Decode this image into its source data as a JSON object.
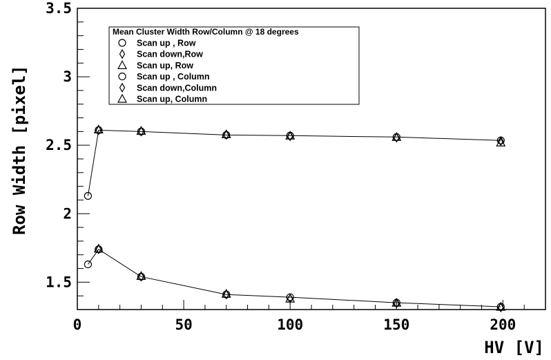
{
  "chart_data": {
    "type": "scatter",
    "xlabel": "HV [V]",
    "ylabel": "Row Width [pixel]",
    "xlim": [
      0,
      220
    ],
    "ylim": [
      1.3,
      3.5
    ],
    "xticks": [
      0,
      50,
      100,
      150,
      200
    ],
    "yticks": [
      1.5,
      2,
      2.5,
      3,
      3.5
    ],
    "xtick_labels": [
      "0",
      "50",
      "100",
      "150",
      "200"
    ],
    "ytick_labels": [
      "1.5",
      "2",
      "2.5",
      "3",
      "3.5"
    ],
    "grid": false,
    "legend": {
      "title": "Mean Cluster Width Row/Column @ 18 degrees",
      "placement": "top-left",
      "entries": [
        {
          "label": "Scan up , Row",
          "marker": "circle"
        },
        {
          "label": "Scan down,Row",
          "marker": "diamond"
        },
        {
          "label": "Scan up, Row",
          "marker": "triangle"
        },
        {
          "label": "Scan up , Column",
          "marker": "circle"
        },
        {
          "label": "Scan down,Column",
          "marker": "diamond"
        },
        {
          "label": "Scan up, Column",
          "marker": "triangle"
        }
      ]
    },
    "series": [
      {
        "name": "Scan up , Row",
        "marker": "circle",
        "line": true,
        "x": [
          5,
          10,
          30,
          70,
          100,
          150,
          199
        ],
        "y": [
          2.13,
          2.61,
          2.6,
          2.575,
          2.57,
          2.56,
          2.535
        ]
      },
      {
        "name": "Scan down,Row",
        "marker": "diamond",
        "line": false,
        "x": [
          10,
          30,
          70,
          100,
          150,
          199
        ],
        "y": [
          2.61,
          2.6,
          2.575,
          2.565,
          2.555,
          2.53
        ]
      },
      {
        "name": "Scan up, Row",
        "marker": "triangle",
        "line": false,
        "x": [
          10,
          30,
          70,
          100,
          150,
          199
        ],
        "y": [
          2.615,
          2.605,
          2.58,
          2.57,
          2.56,
          2.52
        ]
      },
      {
        "name": "Scan up , Column",
        "marker": "circle",
        "line": true,
        "x": [
          5,
          10,
          30,
          70,
          100,
          150,
          199
        ],
        "y": [
          1.63,
          1.74,
          1.54,
          1.41,
          1.39,
          1.35,
          1.32
        ]
      },
      {
        "name": "Scan down,Column",
        "marker": "diamond",
        "line": false,
        "x": [
          10,
          30,
          70,
          100,
          150,
          199
        ],
        "y": [
          1.74,
          1.54,
          1.41,
          1.38,
          1.345,
          1.315
        ]
      },
      {
        "name": "Scan up, Column",
        "marker": "triangle",
        "line": false,
        "x": [
          10,
          30,
          70,
          100,
          150,
          199
        ],
        "y": [
          1.745,
          1.545,
          1.415,
          1.38,
          1.35,
          1.32
        ]
      }
    ]
  }
}
